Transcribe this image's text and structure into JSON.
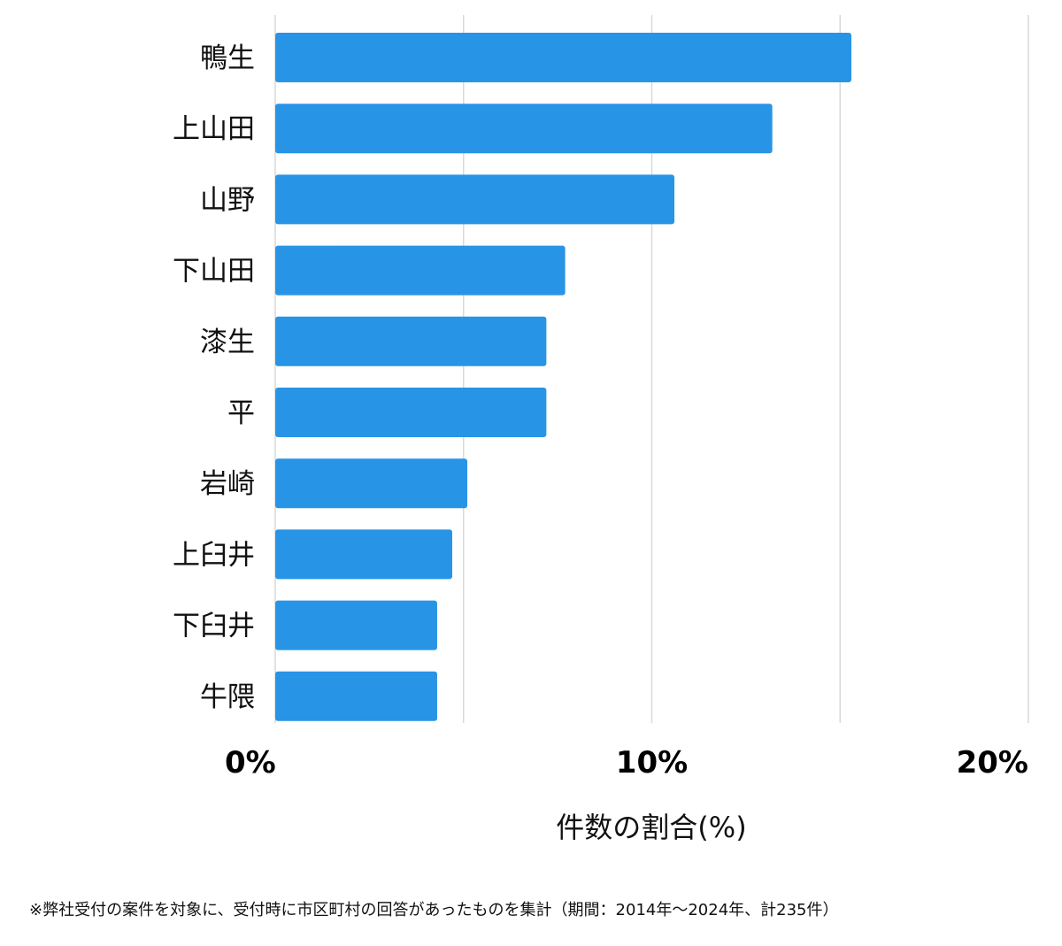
{
  "chart_data": {
    "type": "bar",
    "orientation": "horizontal",
    "categories": [
      "鴨生",
      "上山田",
      "山野",
      "下山田",
      "漆生",
      "平",
      "岩崎",
      "上臼井",
      "下臼井",
      "牛隈"
    ],
    "values": [
      15.3,
      13.2,
      10.6,
      7.7,
      7.2,
      7.2,
      5.1,
      4.7,
      4.3,
      4.3
    ],
    "xlim": [
      0,
      20
    ],
    "ticks": [
      {
        "value": 0,
        "label": "0%"
      },
      {
        "value": 10,
        "label": "10%"
      },
      {
        "value": 20,
        "label": "20%"
      }
    ],
    "gridlines": [
      0,
      5,
      10,
      15,
      20
    ],
    "xlabel": "件数の割合(%)",
    "ylabel": "",
    "title": "",
    "bar_color": "#2894e6",
    "grid": true
  },
  "footnote": "※弊社受付の案件を対象に、受付時に市区町村の回答があったものを集計（期間：2014年～2024年、計235件）"
}
